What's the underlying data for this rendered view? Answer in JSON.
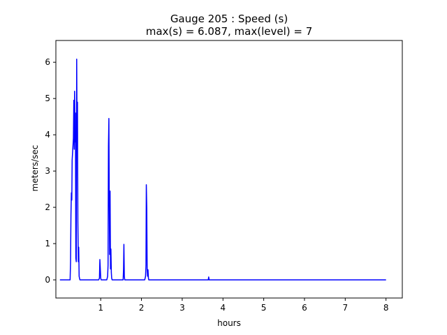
{
  "chart_data": {
    "type": "line",
    "title_line1": "Gauge 205 : Speed (s)",
    "title_line2": "max(s) =   6.087,    max(level) = 7",
    "xlabel": "hours",
    "ylabel": "meters/sec",
    "xlim": [
      -0.1,
      8.4
    ],
    "ylim": [
      -0.5,
      6.6
    ],
    "xticks": [
      1,
      2,
      3,
      4,
      5,
      6,
      7,
      8
    ],
    "yticks": [
      0,
      1,
      2,
      3,
      4,
      5,
      6
    ],
    "grid": false,
    "line_color": "#0000ff",
    "series": [
      {
        "x": [
          0.0,
          0.25,
          0.26,
          0.27,
          0.28,
          0.29,
          0.3,
          0.31,
          0.32,
          0.33,
          0.34,
          0.35,
          0.36,
          0.37,
          0.38,
          0.39,
          0.4,
          0.41,
          0.42,
          0.43,
          0.44,
          0.45,
          0.46,
          0.47,
          0.48,
          0.49,
          0.5,
          0.51,
          0.52,
          0.53,
          0.55,
          0.6,
          0.95,
          0.97,
          0.98,
          0.99,
          1.0,
          1.01,
          1.02,
          1.05,
          1.15,
          1.17,
          1.18,
          1.19,
          1.2,
          1.21,
          1.22,
          1.23,
          1.24,
          1.25,
          1.26,
          1.27,
          1.28,
          1.29,
          1.3,
          1.32,
          1.35,
          1.55,
          1.56,
          1.57,
          1.58,
          1.59,
          1.6,
          1.62,
          2.08,
          2.1,
          2.11,
          2.12,
          2.13,
          2.14,
          2.15,
          2.16,
          2.17,
          2.18,
          2.19,
          2.2,
          2.22,
          2.25,
          3.62,
          3.64,
          3.65,
          3.66,
          3.68,
          8.0
        ],
        "y": [
          0.0,
          0.0,
          0.5,
          1.8,
          2.4,
          2.2,
          3.3,
          3.5,
          3.7,
          3.9,
          4.95,
          3.6,
          5.2,
          3.8,
          4.6,
          0.6,
          0.5,
          6.087,
          4.0,
          4.9,
          1.6,
          0.5,
          0.9,
          0.1,
          0.05,
          0.0,
          0.0,
          0.0,
          0.0,
          0.0,
          0.0,
          0.0,
          0.0,
          0.05,
          0.56,
          0.3,
          0.05,
          0.0,
          0.0,
          0.0,
          0.0,
          0.1,
          0.4,
          3.7,
          4.45,
          2.3,
          0.7,
          2.45,
          0.3,
          0.85,
          0.2,
          0.05,
          0.0,
          0.0,
          0.0,
          0.0,
          0.0,
          0.0,
          0.3,
          0.98,
          0.1,
          0.0,
          0.0,
          0.0,
          0.0,
          0.1,
          0.4,
          2.62,
          2.0,
          0.3,
          0.1,
          0.28,
          0.05,
          0.0,
          0.0,
          0.0,
          0.0,
          0.0,
          0.0,
          0.0,
          0.08,
          0.0,
          0.0,
          0.0
        ]
      }
    ]
  }
}
